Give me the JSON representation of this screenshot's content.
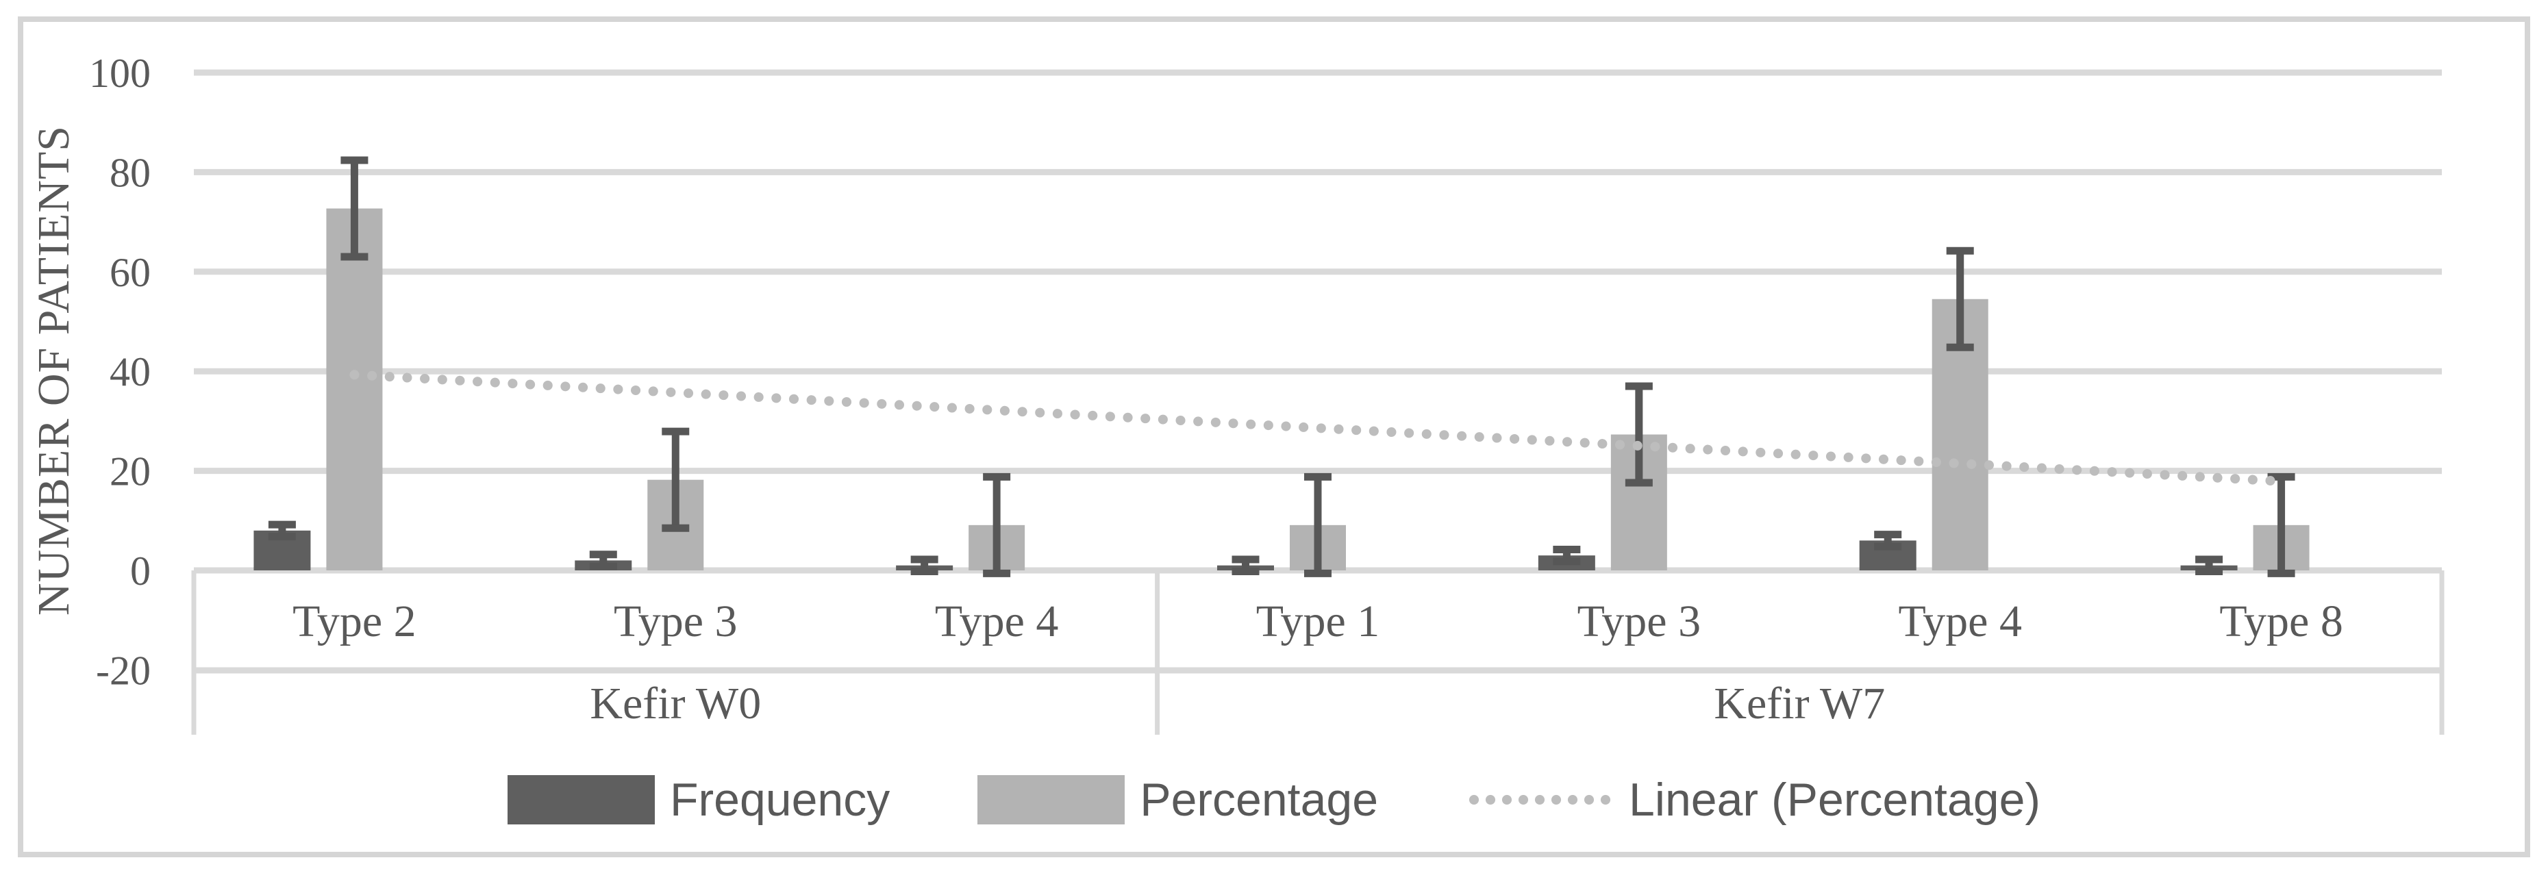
{
  "figure": {
    "background": "#ffffff",
    "frame_color": "#d5d5d5"
  },
  "chart_data": {
    "type": "bar",
    "title": "",
    "xlabel": "",
    "ylabel": "NUMBER OF PATIENTS",
    "ylim": [
      -20,
      100
    ],
    "yticks": [
      100,
      80,
      60,
      40,
      20,
      0,
      -20
    ],
    "grid": true,
    "legend_position": "bottom",
    "gridline_color": "#d9d9d9",
    "error_bar_color": "#575757",
    "text_color": "#595959",
    "groups": [
      {
        "label": "Kefir W0",
        "categories": [
          "Type 2",
          "Type 3",
          "Type 4"
        ]
      },
      {
        "label": "Kefir  W7",
        "categories": [
          "Type 1",
          "Type 3",
          "Type 4",
          "Type 8"
        ]
      }
    ],
    "series": [
      {
        "name": "Frequency",
        "color": "#5f5f5f",
        "values": [
          8,
          2,
          1,
          1,
          3,
          6,
          1
        ],
        "error": 1.2
      },
      {
        "name": "Percentage",
        "color": "#b3b3b3",
        "values": [
          72.7,
          18.2,
          9.1,
          9.1,
          27.3,
          54.5,
          9.1
        ],
        "error": 9.7
      }
    ],
    "trendline": {
      "label": "Linear (Percentage)",
      "color": "#bdbdbd",
      "start_value": 39.3,
      "end_value": 17.9
    }
  }
}
